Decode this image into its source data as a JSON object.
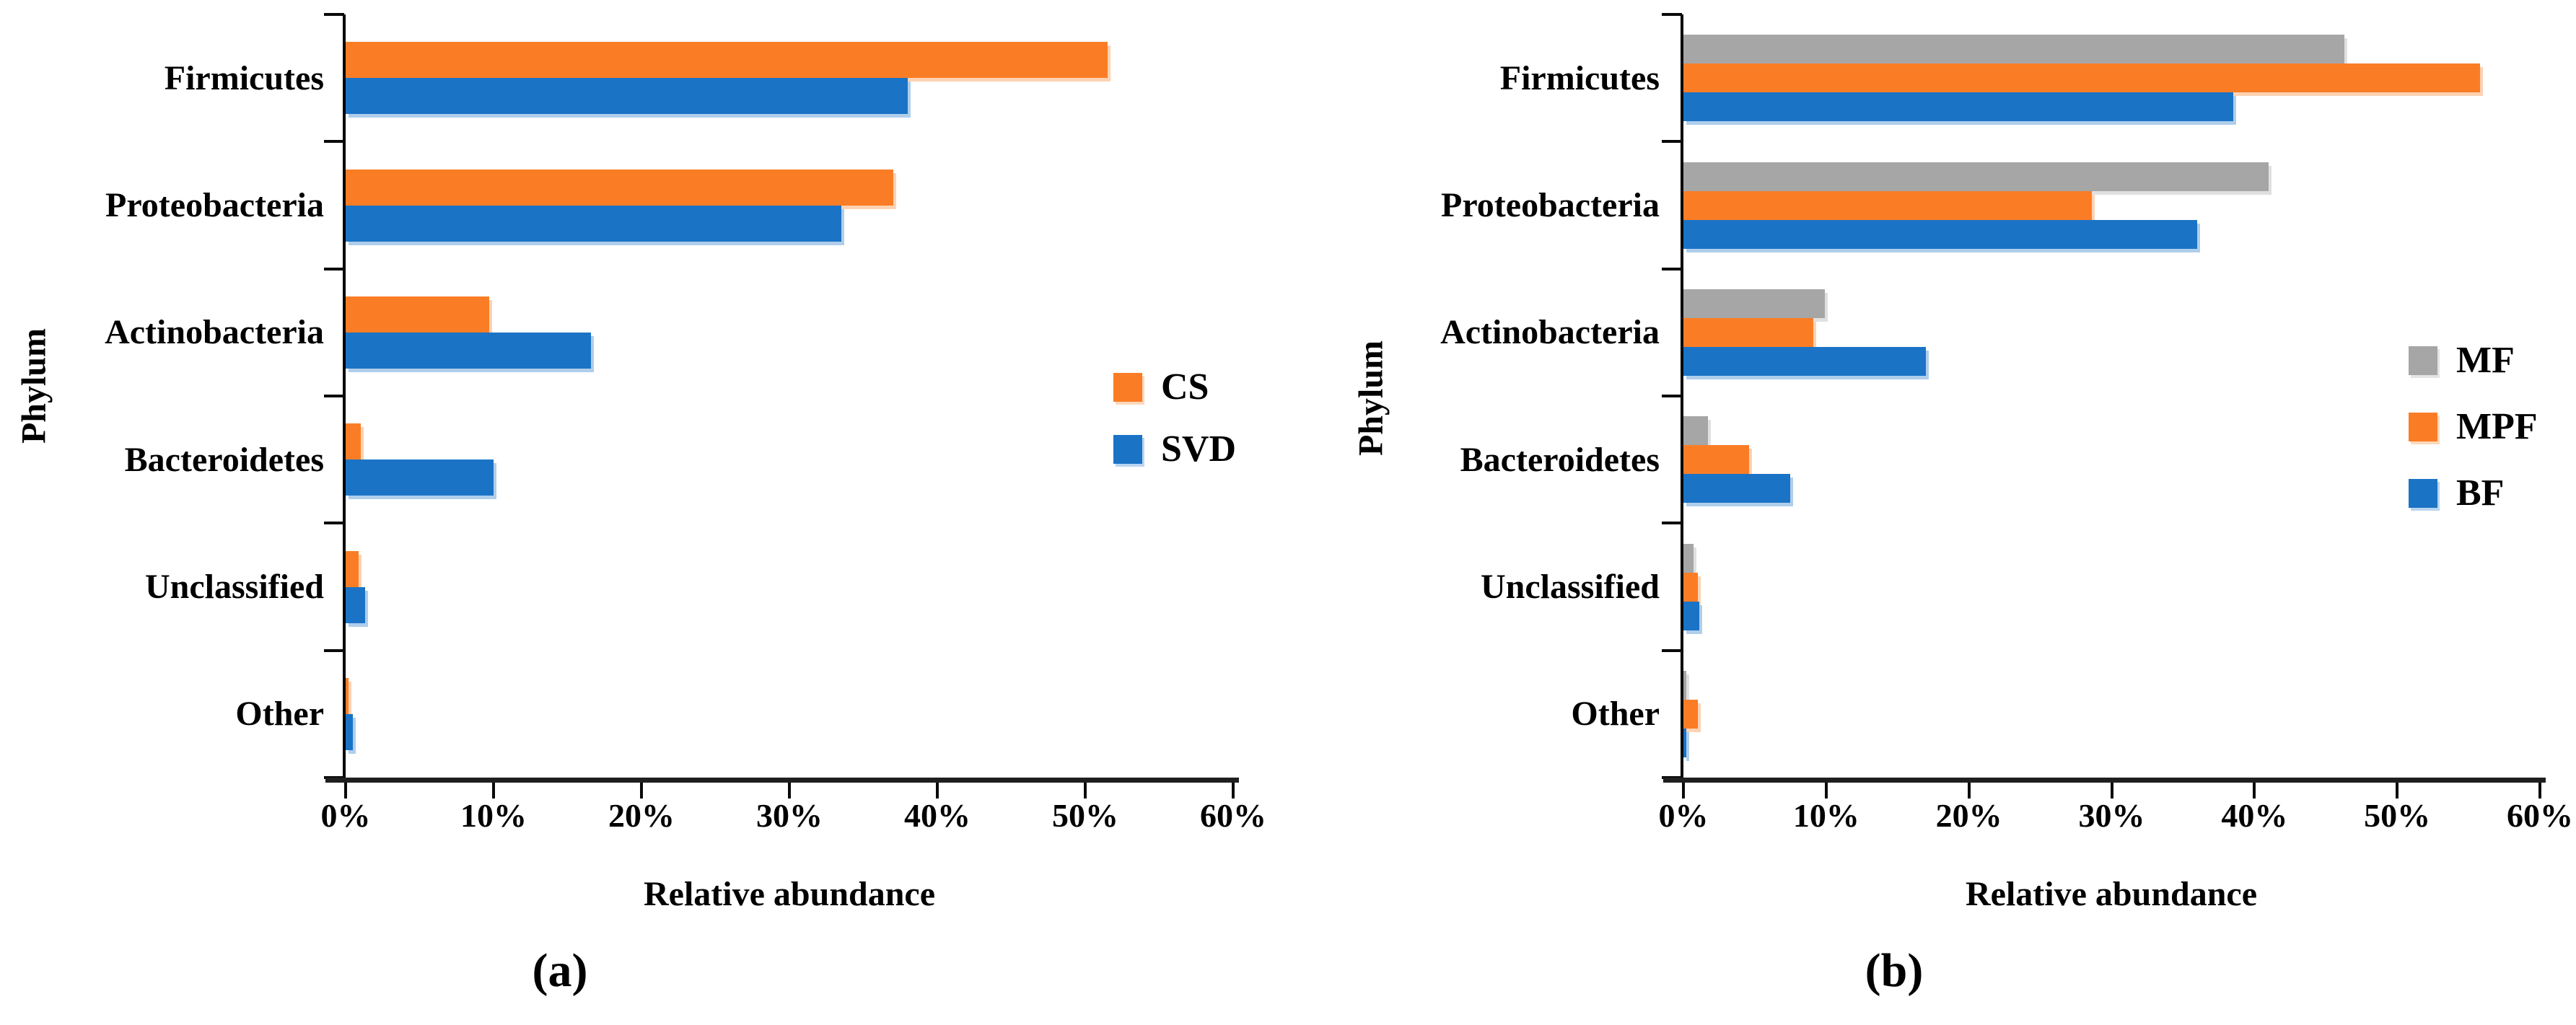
{
  "chart_data": [
    {
      "type": "bar",
      "orientation": "horizontal",
      "panel_label": "(a)",
      "xlabel": "Relative abundance",
      "ylabel": "Phylum",
      "xlim": [
        0,
        60
      ],
      "x_tick_labels": [
        "0%",
        "10%",
        "20%",
        "30%",
        "40%",
        "50%",
        "60%"
      ],
      "grid": false,
      "legend_position": "right-center",
      "categories": [
        "Firmicutes",
        "Proteobacteria",
        "Actinobacteria",
        "Bacteroidetes",
        "Unclassified",
        "Other"
      ],
      "series": [
        {
          "name": "CS",
          "color": "#FA7D26",
          "values": [
            51.5,
            37.0,
            9.7,
            1.0,
            0.9,
            0.2
          ]
        },
        {
          "name": "SVD",
          "color": "#1B73C6",
          "values": [
            38.0,
            33.5,
            16.6,
            10.0,
            1.3,
            0.5
          ]
        }
      ]
    },
    {
      "type": "bar",
      "orientation": "horizontal",
      "panel_label": "(b)",
      "xlabel": "Relative abundance",
      "ylabel": "Phylum",
      "xlim": [
        0,
        60
      ],
      "x_tick_labels": [
        "0%",
        "10%",
        "20%",
        "30%",
        "40%",
        "50%",
        "60%"
      ],
      "grid": false,
      "legend_position": "right-center",
      "categories": [
        "Firmicutes",
        "Proteobacteria",
        "Actinobacteria",
        "Bacteroidetes",
        "Unclassified",
        "Other"
      ],
      "series": [
        {
          "name": "MF",
          "color": "#A6A6A6",
          "values": [
            46.3,
            41.0,
            9.9,
            1.7,
            0.7,
            0.2
          ]
        },
        {
          "name": "MPF",
          "color": "#FA7D26",
          "values": [
            55.8,
            28.6,
            9.1,
            4.6,
            1.0,
            1.0
          ]
        },
        {
          "name": "BF",
          "color": "#1B73C6",
          "values": [
            38.5,
            36.0,
            17.0,
            7.5,
            1.1,
            0.2
          ]
        }
      ]
    }
  ]
}
